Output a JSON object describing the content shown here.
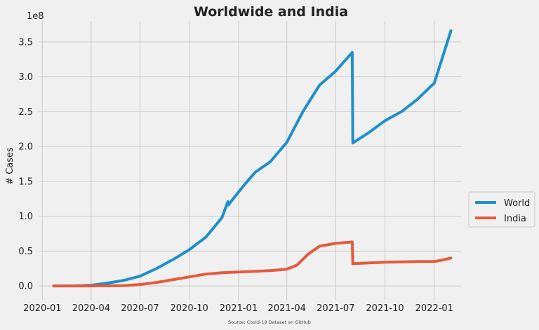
{
  "chart_data": {
    "type": "line",
    "title": "Worldwide and India",
    "xlabel": "",
    "ylabel": "# Cases",
    "y_offset_label": "1e8",
    "source": "Source: Covid-19 Dataset on GitHub",
    "ylim": [
      -0.2,
      3.8
    ],
    "y_unit_multiplier": 100000000,
    "x_ticks": [
      "2020-01",
      "2020-04",
      "2020-07",
      "2020-10",
      "2021-01",
      "2021-04",
      "2021-07",
      "2021-10",
      "2022-01"
    ],
    "y_ticks": [
      "0.0",
      "0.5",
      "1.0",
      "1.5",
      "2.0",
      "2.5",
      "3.0",
      "3.5"
    ],
    "grid": true,
    "legend_position": "right",
    "series": [
      {
        "name": "World",
        "color": "#1f8fc8",
        "points": [
          [
            "2020-01-22",
            0.0
          ],
          [
            "2020-03-01",
            0.001
          ],
          [
            "2020-04-01",
            0.01
          ],
          [
            "2020-05-01",
            0.04
          ],
          [
            "2020-06-01",
            0.08
          ],
          [
            "2020-07-01",
            0.14
          ],
          [
            "2020-08-01",
            0.25
          ],
          [
            "2020-09-01",
            0.38
          ],
          [
            "2020-10-01",
            0.52
          ],
          [
            "2020-11-01",
            0.7
          ],
          [
            "2020-12-01",
            0.98
          ],
          [
            "2020-12-12",
            1.21
          ],
          [
            "2020-12-13",
            1.16
          ],
          [
            "2020-12-25",
            1.28
          ],
          [
            "2021-01-15",
            1.48
          ],
          [
            "2021-02-01",
            1.63
          ],
          [
            "2021-03-01",
            1.78
          ],
          [
            "2021-04-01",
            2.06
          ],
          [
            "2021-05-01",
            2.5
          ],
          [
            "2021-06-01",
            2.88
          ],
          [
            "2021-07-01",
            3.08
          ],
          [
            "2021-08-01",
            3.35
          ],
          [
            "2021-08-02",
            2.05
          ],
          [
            "2021-09-01",
            2.2
          ],
          [
            "2021-10-01",
            2.37
          ],
          [
            "2021-11-01",
            2.5
          ],
          [
            "2021-12-01",
            2.68
          ],
          [
            "2021-12-25",
            2.86
          ],
          [
            "2022-01-01",
            2.91
          ],
          [
            "2022-02-01",
            3.66
          ]
        ]
      },
      {
        "name": "India",
        "color": "#e55a3c",
        "points": [
          [
            "2020-01-22",
            0.0
          ],
          [
            "2020-04-01",
            0.0
          ],
          [
            "2020-06-01",
            0.005
          ],
          [
            "2020-07-01",
            0.02
          ],
          [
            "2020-08-01",
            0.05
          ],
          [
            "2020-09-01",
            0.09
          ],
          [
            "2020-10-01",
            0.13
          ],
          [
            "2020-11-01",
            0.17
          ],
          [
            "2020-12-01",
            0.19
          ],
          [
            "2021-01-01",
            0.2
          ],
          [
            "2021-02-01",
            0.21
          ],
          [
            "2021-03-01",
            0.22
          ],
          [
            "2021-04-01",
            0.24
          ],
          [
            "2021-04-20",
            0.3
          ],
          [
            "2021-05-10",
            0.45
          ],
          [
            "2021-06-01",
            0.57
          ],
          [
            "2021-07-01",
            0.61
          ],
          [
            "2021-08-01",
            0.63
          ],
          [
            "2021-08-02",
            0.32
          ],
          [
            "2021-09-01",
            0.33
          ],
          [
            "2021-10-01",
            0.34
          ],
          [
            "2021-11-01",
            0.345
          ],
          [
            "2021-12-01",
            0.35
          ],
          [
            "2022-01-01",
            0.35
          ],
          [
            "2022-01-15",
            0.37
          ],
          [
            "2022-02-01",
            0.4
          ]
        ]
      }
    ]
  }
}
